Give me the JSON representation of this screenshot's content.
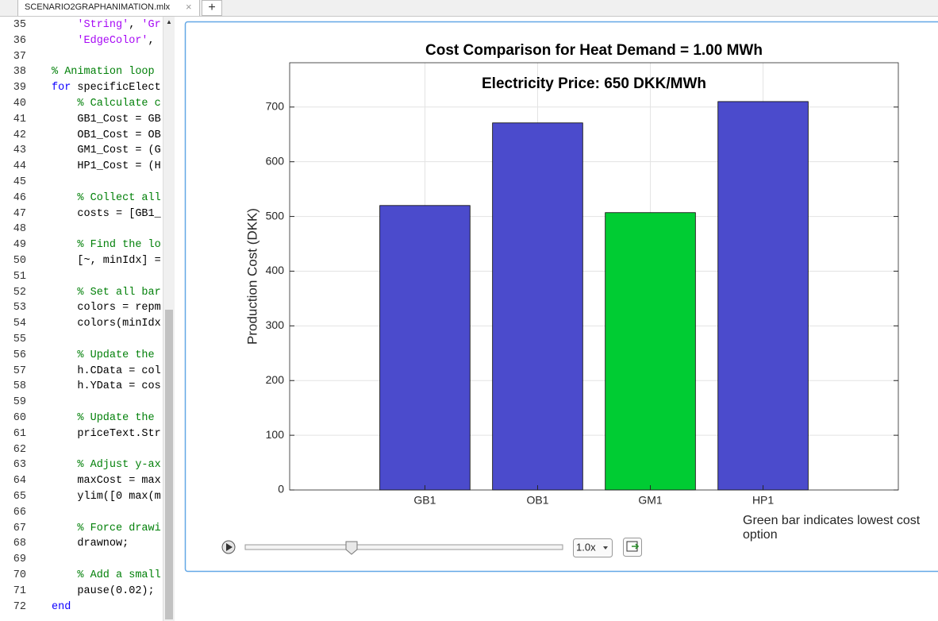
{
  "tab": {
    "title": "SCENARIO2GRAPHANIMATION.mlx"
  },
  "code": {
    "lines": [
      {
        "number": 35,
        "text": "    'String', 'Gr"
      },
      {
        "number": 36,
        "text": "    'EdgeColor', "
      },
      {
        "number": 37
      },
      {
        "number": 38,
        "text": "% Animation loop "
      },
      {
        "number": 39,
        "text": "for specificElect"
      },
      {
        "number": 40,
        "text": "    % Calculate c"
      },
      {
        "number": 41,
        "text": "    GB1_Cost = GB"
      },
      {
        "number": 42,
        "text": "    OB1_Cost = OB"
      },
      {
        "number": 43,
        "text": "    GM1_Cost = (G"
      },
      {
        "number": 44,
        "text": "    HP1_Cost = (H"
      },
      {
        "number": 45
      },
      {
        "number": 46,
        "text": "    % Collect all"
      },
      {
        "number": 47,
        "text": "    costs = [GB1_"
      },
      {
        "number": 48
      },
      {
        "number": 49,
        "text": "    % Find the lo"
      },
      {
        "number": 50,
        "text": "    [~, minIdx] ="
      },
      {
        "number": 51
      },
      {
        "number": 52,
        "text": "    % Set all bar"
      },
      {
        "number": 53,
        "text": "    colors = repm"
      },
      {
        "number": 54,
        "text": "    colors(minIdx"
      },
      {
        "number": 55
      },
      {
        "number": 56,
        "text": "    % Update the "
      },
      {
        "number": 57,
        "text": "    h.CData = col"
      },
      {
        "number": 58,
        "text": "    h.YData = cos"
      },
      {
        "number": 59
      },
      {
        "number": 60,
        "text": "    % Update the "
      },
      {
        "number": 61,
        "text": "    priceText.Str"
      },
      {
        "number": 62
      },
      {
        "number": 63,
        "text": "    % Adjust y-ax"
      },
      {
        "number": 64,
        "text": "    maxCost = max"
      },
      {
        "number": 65,
        "text": "    ylim([0 max(m"
      },
      {
        "number": 66
      },
      {
        "number": 67,
        "text": "    % Force drawi"
      },
      {
        "number": 68,
        "text": "    drawnow;"
      },
      {
        "number": 69
      },
      {
        "number": 70,
        "text": "    % Add a small"
      },
      {
        "number": 71,
        "text": "    pause(0.02);"
      },
      {
        "number": 72,
        "text": "end"
      }
    ]
  },
  "chart_data": {
    "type": "bar",
    "title": "Cost Comparison for Heat Demand = 1.00 MWh",
    "annotation": "Electricity Price: 650 DKK/MWh",
    "ylabel": "Production Cost (DKK)",
    "categories": [
      "GB1",
      "OB1",
      "GM1",
      "HP1"
    ],
    "values": [
      520,
      671,
      507,
      710
    ],
    "colors": [
      "#4b4bcc",
      "#4b4bcc",
      "#00cc33",
      "#4b4bcc"
    ],
    "ylim": [
      0,
      781
    ],
    "yticks": [
      0,
      100,
      200,
      300,
      400,
      500,
      600,
      700
    ],
    "grid": true,
    "note": "Green bar indicates lowest cost option"
  },
  "controls": {
    "speed": "1.0x"
  }
}
